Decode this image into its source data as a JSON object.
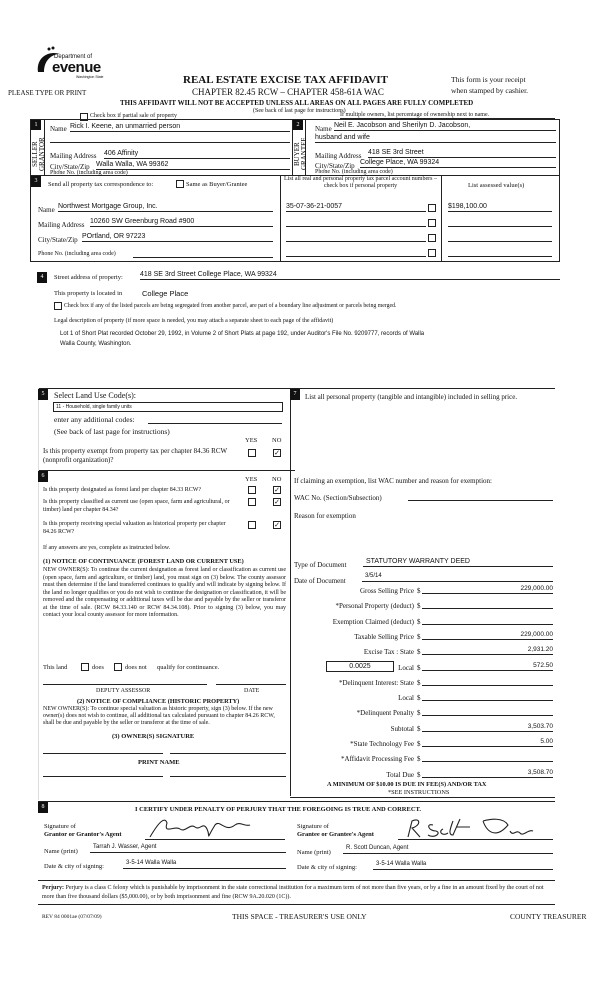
{
  "header": {
    "dept": "Department of",
    "logo_word": "evenue",
    "logo_state": "Washington State",
    "please": "PLEASE TYPE OR PRINT",
    "title": "REAL ESTATE EXCISE TAX AFFIDAVIT",
    "chapter": "CHAPTER 82.45 RCW – CHAPTER 458-61A WAC",
    "warning": "THIS AFFIDAVIT WILL NOT BE ACCEPTED UNLESS ALL AREAS ON ALL PAGES ARE FULLY COMPLETED",
    "see_back": "(See back of last page for instructions)",
    "receipt1": "This form is your receipt",
    "receipt2": "when stamped by cashier.",
    "partial_sale": "Check box if partial sale of property",
    "multiple_owners": "If multiple owners, list percentage of ownership next to name."
  },
  "seller": {
    "num": "1",
    "side": "SELLER GRANTOR",
    "name_label": "Name",
    "name": "Rick I. Keene, an unmarried person",
    "mail_label": "Mailing Address",
    "mail": "406 Affinity",
    "city_label": "City/State/Zip",
    "city": "Walla Walla, WA 99362",
    "phone_label": "Phone No. (including area code)"
  },
  "buyer": {
    "num": "2",
    "side": "BUYER GRANTEE",
    "name_label": "Name",
    "name": "Neil E. Jacobson and Sherilyn D. Jacobson,",
    "name2": "husband and wife",
    "mail_label": "Mailing Address",
    "mail": "418 SE 3rd Street",
    "city_label": "City/State/Zip",
    "city": "College Place, WA 99324",
    "phone_label": "Phone No. (including area code)"
  },
  "correspondence": {
    "num": "3",
    "send_label": "Send all property tax correspondence to:",
    "same_label": "Same as Buyer/Grantee",
    "name_label": "Name",
    "name": "Northwest Mortgage Group, Inc.",
    "mail_label": "Mailing Address",
    "mail": "10260 SW Greenburg Road #900",
    "city_label": "City/State/Zip",
    "city": "POrtland, OR 97223",
    "phone_label": "Phone No. (including area code)",
    "parcel_header": "List all real and personal property tax parcel account numbers – check box if personal property",
    "assessed_header": "List assessed value(s)",
    "parcels": [
      {
        "number": "35-07-36-21-0057",
        "value": "$198,100.00"
      },
      {
        "number": "",
        "value": ""
      },
      {
        "number": "",
        "value": ""
      },
      {
        "number": "",
        "value": ""
      }
    ]
  },
  "property": {
    "num": "4",
    "street_label": "Street address of property:",
    "street": "418 SE 3rd Street College Place, WA 99324",
    "located_label": "This property is located in",
    "located": "College Place",
    "segregated": "Check box if any of the listed parcels are being segregated from another parcel, are part of a boundary line adjustment or parcels being merged.",
    "legal_label": "Legal description of property (if more space is needed, you may attach a separate sheet to each page of the affidavit)",
    "legal1": "Lot 1 of Short Plat recorded October 29, 1992, in Volume 2 of Short Plats at page 192, under Auditor's File No. 9209777, records of Walla",
    "legal2": "Walla County, Washington."
  },
  "land_use": {
    "num": "5",
    "label": "Select Land Use Code(s):",
    "code": "11 - Household, single family units",
    "additional": "enter any additional codes:",
    "see_back": "(See back of last page for instructions)",
    "yes": "YES",
    "no": "NO",
    "exempt_q": "Is this property exempt from property tax per chapter 84.36 RCW (nonprofit organization)?"
  },
  "section6": {
    "num": "6",
    "yes": "YES",
    "no": "NO",
    "q1": "Is this property designated as forest land per chapter 84.33 RCW?",
    "q2": "Is this property classified as current use (open space, farm and agricultural, or timber) land per chapter 84.34?",
    "q3": "Is this property receiving special valuation as historical property per chapter 84.26 RCW?",
    "if_yes": "If any answers are yes, complete as instructed below.",
    "n1_title": "(1) NOTICE OF CONTINUANCE (FOREST LAND OR CURRENT USE)",
    "n1_text": "NEW OWNER(S): To continue the current designation as forest land or classification as current use (open space, farm and agriculture, or timber) land, you must sign on (3) below. The county assessor must then determine if the land transferred continues to qualify and will indicate by signing below. If the land no longer qualifies or you do not wish to continue the designation or classification, it will be removed and the compensating or additional taxes will be due and payable by the seller or transferor at the time of sale. (RCW 84.33.140 or RCW 84.34.108). Prior to signing (3) below, you may contact your local county assessor for more information.",
    "this_land": "This land",
    "does": "does",
    "does_not": "does not",
    "qualify": "qualify for continuance.",
    "deputy": "DEPUTY ASSESSOR",
    "date": "DATE",
    "n2_title": "(2) NOTICE OF COMPLIANCE (HISTORIC PROPERTY)",
    "n2_text": "NEW OWNER(S): To continue special valuation as historic property, sign (3) below. If the new owner(s) does not wish to continue, all additional tax calculated pursuant to chapter 84.26 RCW, shall be due and payable by the seller or transferor at the time of sale.",
    "n3_title": "(3) OWNER(S) SIGNATURE",
    "print_name": "PRINT NAME"
  },
  "section7": {
    "num": "7",
    "personal": "List all personal property (tangible and intangible) included in selling price.",
    "exemption": "If claiming an exemption, list WAC number and reason for exemption:",
    "wac": "WAC No. (Section/Subsection)",
    "reason": "Reason for exemption",
    "doc_type_label": "Type of Document",
    "doc_type": "STATUTORY WARRANTY DEED",
    "doc_date_label": "Date of Document",
    "doc_date": "3/5/14",
    "local_rate": "0.0025",
    "totals": [
      {
        "label": "Gross Selling Price",
        "value": "229,000.00"
      },
      {
        "label": "*Personal Property (deduct)",
        "value": ""
      },
      {
        "label": "Exemption Claimed (deduct)",
        "value": ""
      },
      {
        "label": "Taxable Selling Price",
        "value": "229,000.00"
      },
      {
        "label": "Excise Tax : State",
        "value": "2,931.20"
      },
      {
        "label": "Local",
        "value": "572.50"
      },
      {
        "label": "*Delinquent Interest: State",
        "value": ""
      },
      {
        "label": "Local",
        "value": ""
      },
      {
        "label": "*Delinquent Penalty",
        "value": ""
      },
      {
        "label": "Subtotal",
        "value": "3,503.70"
      },
      {
        "label": "*State Technology Fee",
        "value": "5.00"
      },
      {
        "label": "*Affidavit Processing Fee",
        "value": ""
      },
      {
        "label": "Total Due",
        "value": "3,508.70"
      }
    ],
    "currency": "$",
    "minimum": "A MINIMUM OF $10.00 IS DUE IN FEE(S) AND/OR TAX",
    "see_instr": "*SEE INSTRUCTIONS"
  },
  "certify": {
    "num": "8",
    "text": "I CERTIFY UNDER PENALTY OF PERJURY THAT THE FOREGOING IS TRUE AND CORRECT.",
    "sig_of": "Signature of",
    "grantor_agent": "Grantor or Grantor's Agent",
    "grantee_agent": "Grantee or Grantee's Agent",
    "name_print": "Name (print)",
    "grantor_name": "Tarrah J. Wasser, Agent",
    "grantee_name": "R. Scott Duncan, Agent",
    "date_city": "Date & city of signing:",
    "grantor_date": "3-5-14 Walla Walla",
    "grantee_date": "3-5-14 Walla Walla"
  },
  "perjury": {
    "label": "Perjury:",
    "text": "Perjury is a class C felony which is punishable by imprisonment in the state correctional institution for a maximum term of not more than five years, or by a fine in an amount fixed by the court of not more than five thousand dollars ($5,000.00), or by both imprisonment and fine (RCW 9A.20.020 (1C))."
  },
  "footer": {
    "rev": "REV 84 0001ae (07/07/09)",
    "treasurer_use": "THIS SPACE - TREASURER'S USE ONLY",
    "county_treasurer": "COUNTY TREASURER"
  },
  "checks": {
    "exempt_no": "✓",
    "q1_no": "✓",
    "q2_no": "✓",
    "q3_no": "✓"
  }
}
